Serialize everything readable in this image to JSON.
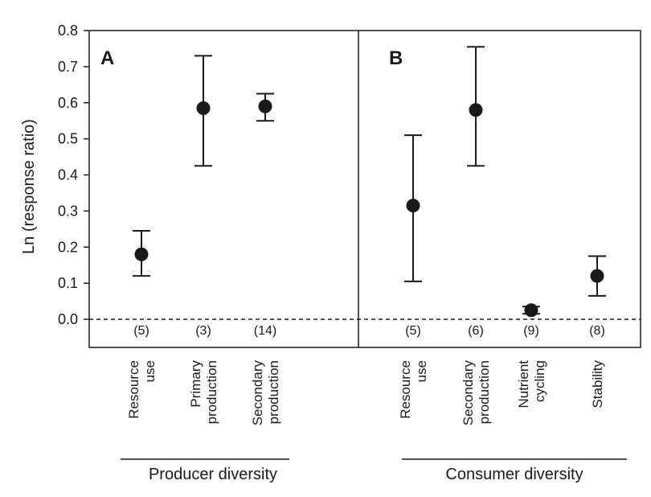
{
  "chart_data": {
    "type": "scatter",
    "ylabel": "Ln (response ratio)",
    "ylim": [
      0.0,
      0.8
    ],
    "yticks": [
      "0.0",
      "0.1",
      "0.2",
      "0.3",
      "0.4",
      "0.5",
      "0.6",
      "0.7",
      "0.8"
    ],
    "zero_line": "dashed",
    "panels": [
      {
        "letter": "A",
        "group_label": "Producer diversity",
        "points": [
          {
            "category": [
              "Resource",
              "use"
            ],
            "n": "(5)",
            "value": 0.18,
            "lower": 0.12,
            "upper": 0.245
          },
          {
            "category": [
              "Primary",
              "production"
            ],
            "n": "(3)",
            "value": 0.585,
            "lower": 0.425,
            "upper": 0.73
          },
          {
            "category": [
              "Secondary",
              "production"
            ],
            "n": "(14)",
            "value": 0.59,
            "lower": 0.55,
            "upper": 0.625
          }
        ]
      },
      {
        "letter": "B",
        "group_label": "Consumer diversity",
        "points": [
          {
            "category": [
              "Resource",
              "use"
            ],
            "n": "(5)",
            "value": 0.315,
            "lower": 0.105,
            "upper": 0.51
          },
          {
            "category": [
              "Secondary",
              "production"
            ],
            "n": "(6)",
            "value": 0.58,
            "lower": 0.425,
            "upper": 0.755
          },
          {
            "category": [
              "Nutrient",
              "cycling"
            ],
            "n": "(9)",
            "value": 0.025,
            "lower": 0.015,
            "upper": 0.035
          },
          {
            "category": [
              "Stability"
            ],
            "n": "(8)",
            "value": 0.12,
            "lower": 0.065,
            "upper": 0.175
          }
        ]
      }
    ]
  }
}
